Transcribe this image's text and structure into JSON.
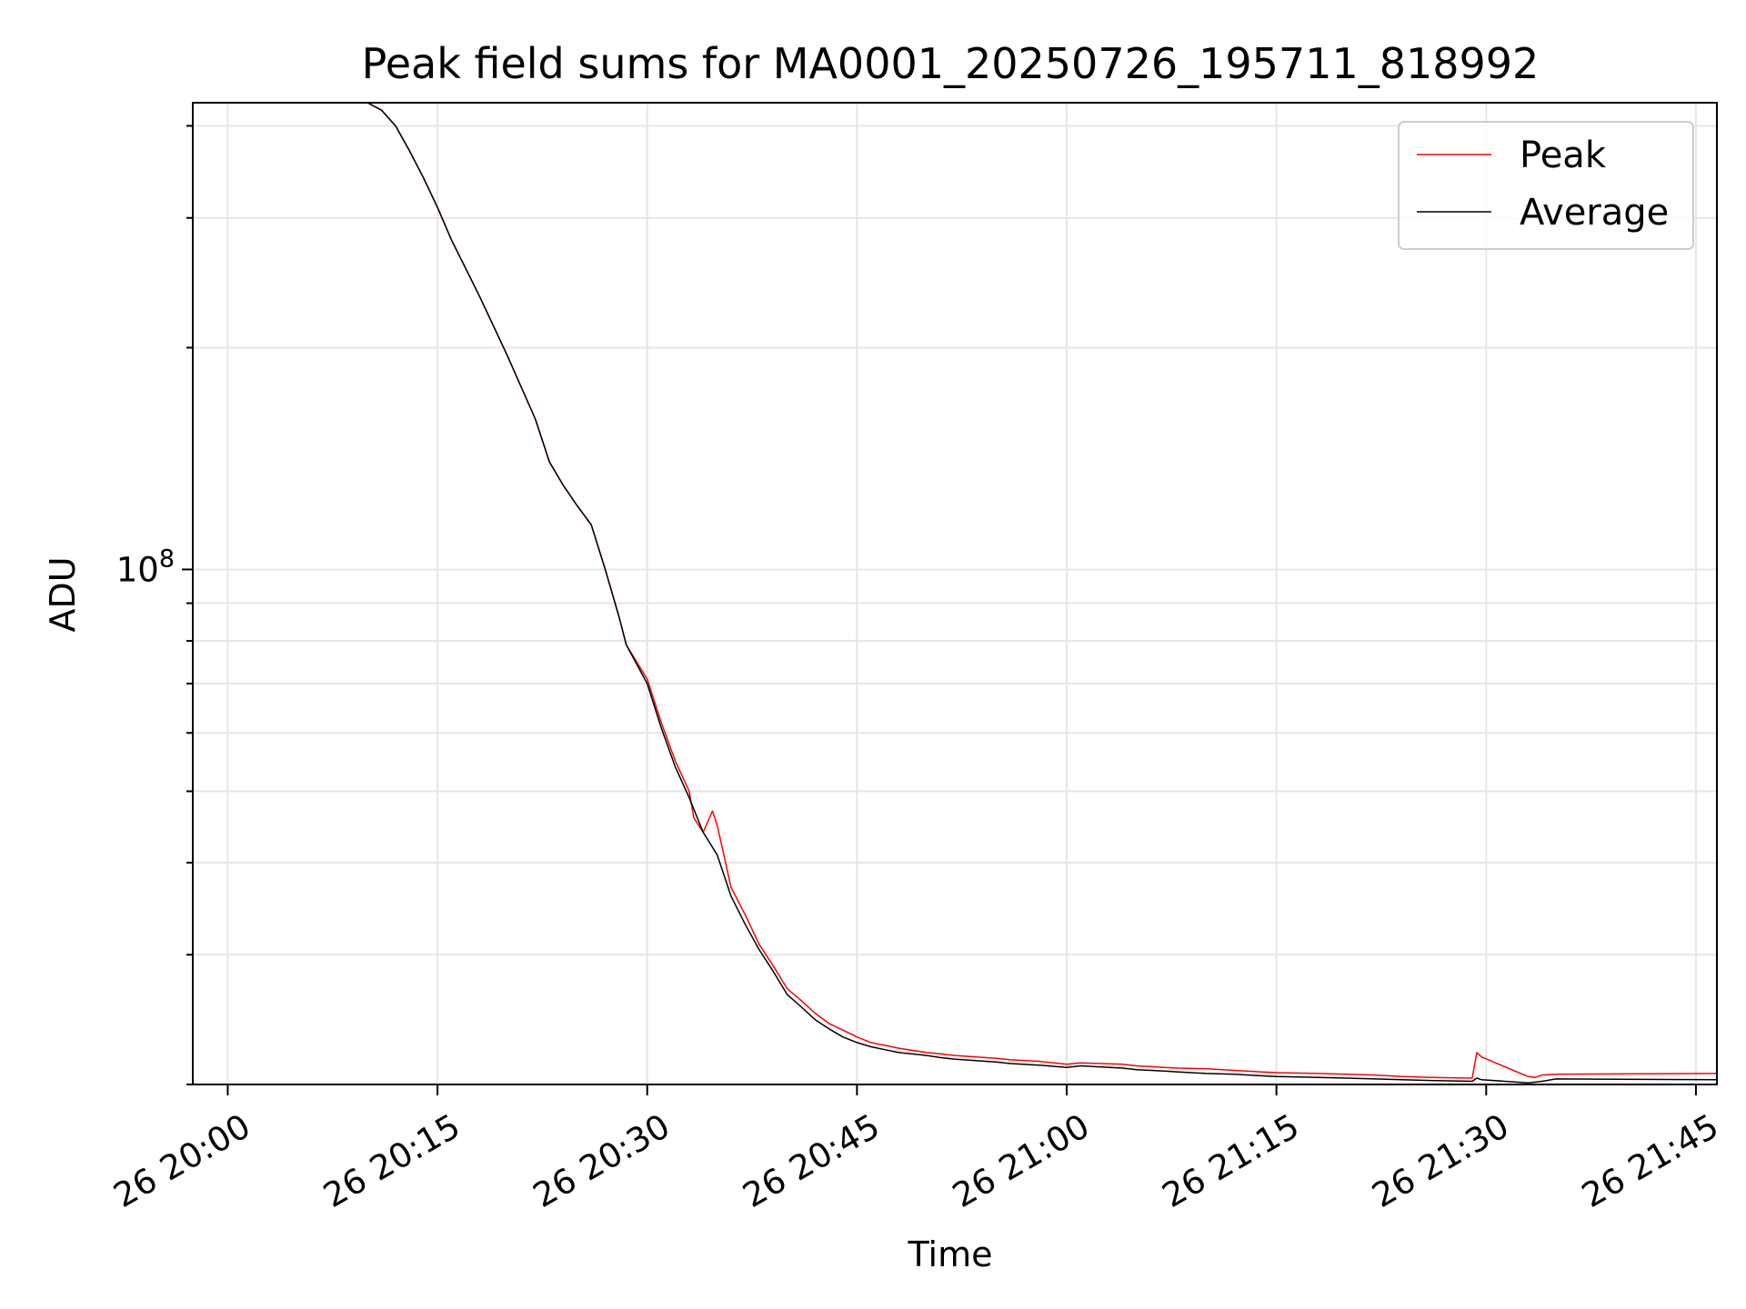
{
  "chart_data": {
    "type": "line",
    "title": "Peak field sums for MA0001_20250726_195711_818992",
    "xlabel": "Time",
    "ylabel": "ADU",
    "y_scale": "log",
    "grid": true,
    "legend_position": "top-right",
    "x_tick_labels": [
      "26 20:00",
      "26 20:15",
      "26 20:30",
      "26 20:45",
      "26 21:00",
      "26 21:15",
      "26 21:30",
      "26 21:45"
    ],
    "x_ticks": [
      "2025-07-26 20:00",
      "2025-07-26 20:15",
      "2025-07-26 20:30",
      "2025-07-26 20:45",
      "2025-07-26 21:00",
      "2025-07-26 21:15",
      "2025-07-26 21:30",
      "2025-07-26 21:45"
    ],
    "xlim": [
      "2025-07-26 19:57:30",
      "2025-07-26 21:46:30"
    ],
    "ylim": [
      20000000,
      430000000
    ],
    "y_major_ticks": [
      100000000
    ],
    "y_major_tick_labels": [
      {
        "base": "10",
        "exp": "8"
      }
    ],
    "y_minor_ticks": [
      20000000,
      30000000,
      40000000,
      50000000,
      60000000,
      70000000,
      80000000,
      90000000,
      200000000,
      300000000,
      400000000
    ],
    "series": [
      {
        "name": "Peak",
        "color": "#ff0000",
        "x": [
          "2025-07-26 20:06:00",
          "2025-07-26 20:10:00",
          "2025-07-26 20:11:00",
          "2025-07-26 20:12:00",
          "2025-07-26 20:13:00",
          "2025-07-26 20:14:00",
          "2025-07-26 20:15:00",
          "2025-07-26 20:16:00",
          "2025-07-26 20:18:00",
          "2025-07-26 20:20:00",
          "2025-07-26 20:22:00",
          "2025-07-26 20:23:00",
          "2025-07-26 20:24:00",
          "2025-07-26 20:25:00",
          "2025-07-26 20:26:00",
          "2025-07-26 20:27:00",
          "2025-07-26 20:28:00",
          "2025-07-26 20:28:30",
          "2025-07-26 20:30:00",
          "2025-07-26 20:31:00",
          "2025-07-26 20:32:00",
          "2025-07-26 20:33:00",
          "2025-07-26 20:33:20",
          "2025-07-26 20:34:00",
          "2025-07-26 20:34:40",
          "2025-07-26 20:35:00",
          "2025-07-26 20:36:00",
          "2025-07-26 20:37:00",
          "2025-07-26 20:38:00",
          "2025-07-26 20:39:00",
          "2025-07-26 20:40:00",
          "2025-07-26 20:41:00",
          "2025-07-26 20:42:00",
          "2025-07-26 20:43:00",
          "2025-07-26 20:44:00",
          "2025-07-26 20:45:00",
          "2025-07-26 20:46:00",
          "2025-07-26 20:47:00",
          "2025-07-26 20:48:00",
          "2025-07-26 20:50:00",
          "2025-07-26 20:51:00",
          "2025-07-26 20:52:00",
          "2025-07-26 20:55:00",
          "2025-07-26 20:56:00",
          "2025-07-26 20:58:00",
          "2025-07-26 21:00:00",
          "2025-07-26 21:01:00",
          "2025-07-26 21:04:00",
          "2025-07-26 21:05:00",
          "2025-07-26 21:07:00",
          "2025-07-26 21:08:00",
          "2025-07-26 21:10:00",
          "2025-07-26 21:12:00",
          "2025-07-26 21:14:00",
          "2025-07-26 21:15:00",
          "2025-07-26 21:18:00",
          "2025-07-26 21:20:00",
          "2025-07-26 21:22:00",
          "2025-07-26 21:24:00",
          "2025-07-26 21:26:00",
          "2025-07-26 21:29:00",
          "2025-07-26 21:29:20",
          "2025-07-26 21:29:40",
          "2025-07-26 21:33:00",
          "2025-07-26 21:33:30",
          "2025-07-26 21:34:00",
          "2025-07-26 21:35:00",
          "2025-07-26 21:46:30"
        ],
        "y": [
          430000000,
          430000000,
          420000000,
          400000000,
          370000000,
          340000000,
          310000000,
          280000000,
          235000000,
          195000000,
          160000000,
          140000000,
          130000000,
          122000000,
          115000000,
          100000000,
          86000000,
          79000000,
          71000000,
          62000000,
          55000000,
          50000000,
          46000000,
          44000000,
          47000000,
          45000000,
          37000000,
          34000000,
          31000000,
          29000000,
          27000000,
          26000000,
          25000000,
          24200000,
          23700000,
          23200000,
          22800000,
          22600000,
          22400000,
          22100000,
          22000000,
          21900000,
          21700000,
          21600000,
          21500000,
          21300000,
          21400000,
          21300000,
          21200000,
          21100000,
          21050000,
          21000000,
          20900000,
          20800000,
          20750000,
          20700000,
          20650000,
          20600000,
          20500000,
          20450000,
          20400000,
          22100000,
          21800000,
          20500000,
          20450000,
          20600000,
          20650000,
          20700000
        ]
      },
      {
        "name": "Average",
        "color": "#000000",
        "x": [
          "2025-07-26 20:06:00",
          "2025-07-26 20:10:00",
          "2025-07-26 20:11:00",
          "2025-07-26 20:12:00",
          "2025-07-26 20:13:00",
          "2025-07-26 20:14:00",
          "2025-07-26 20:15:00",
          "2025-07-26 20:16:00",
          "2025-07-26 20:18:00",
          "2025-07-26 20:20:00",
          "2025-07-26 20:22:00",
          "2025-07-26 20:23:00",
          "2025-07-26 20:24:00",
          "2025-07-26 20:25:00",
          "2025-07-26 20:26:00",
          "2025-07-26 20:27:00",
          "2025-07-26 20:28:00",
          "2025-07-26 20:28:30",
          "2025-07-26 20:30:00",
          "2025-07-26 20:31:00",
          "2025-07-26 20:32:00",
          "2025-07-26 20:33:00",
          "2025-07-26 20:34:00",
          "2025-07-26 20:35:00",
          "2025-07-26 20:36:00",
          "2025-07-26 20:37:00",
          "2025-07-26 20:38:00",
          "2025-07-26 20:39:00",
          "2025-07-26 20:40:00",
          "2025-07-26 20:41:00",
          "2025-07-26 20:42:00",
          "2025-07-26 20:43:00",
          "2025-07-26 20:44:00",
          "2025-07-26 20:45:00",
          "2025-07-26 20:46:00",
          "2025-07-26 20:47:00",
          "2025-07-26 20:48:00",
          "2025-07-26 20:50:00",
          "2025-07-26 20:51:00",
          "2025-07-26 20:52:00",
          "2025-07-26 20:55:00",
          "2025-07-26 20:56:00",
          "2025-07-26 20:58:00",
          "2025-07-26 21:00:00",
          "2025-07-26 21:01:00",
          "2025-07-26 21:04:00",
          "2025-07-26 21:05:00",
          "2025-07-26 21:07:00",
          "2025-07-26 21:08:00",
          "2025-07-26 21:10:00",
          "2025-07-26 21:12:00",
          "2025-07-26 21:14:00",
          "2025-07-26 21:15:00",
          "2025-07-26 21:18:00",
          "2025-07-26 21:20:00",
          "2025-07-26 21:22:00",
          "2025-07-26 21:24:00",
          "2025-07-26 21:26:00",
          "2025-07-26 21:29:00",
          "2025-07-26 21:29:20",
          "2025-07-26 21:29:40",
          "2025-07-26 21:33:00",
          "2025-07-26 21:33:30",
          "2025-07-26 21:34:00",
          "2025-07-26 21:35:00",
          "2025-07-26 21:46:30"
        ],
        "y": [
          430000000,
          430000000,
          420000000,
          400000000,
          370000000,
          340000000,
          310000000,
          280000000,
          235000000,
          195000000,
          160000000,
          140000000,
          130000000,
          122000000,
          115000000,
          100000000,
          86000000,
          79000000,
          70000000,
          61000000,
          54000000,
          49000000,
          44000000,
          41000000,
          36000000,
          33000000,
          30500000,
          28500000,
          26500000,
          25500000,
          24500000,
          23800000,
          23200000,
          22800000,
          22500000,
          22300000,
          22100000,
          21900000,
          21750000,
          21650000,
          21450000,
          21350000,
          21250000,
          21100000,
          21200000,
          21050000,
          20950000,
          20850000,
          20800000,
          20700000,
          20650000,
          20550000,
          20500000,
          20450000,
          20400000,
          20350000,
          20300000,
          20250000,
          20200000,
          20400000,
          20300000,
          20100000,
          20150000,
          20200000,
          20350000,
          20300000
        ]
      }
    ]
  }
}
